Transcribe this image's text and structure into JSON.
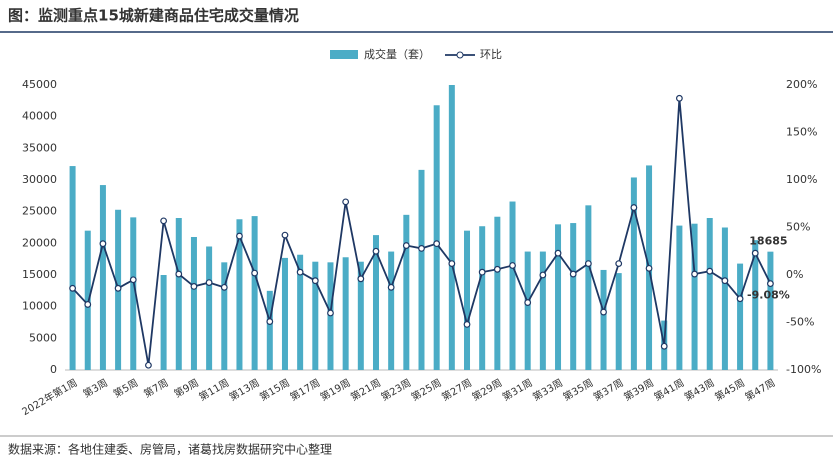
{
  "chart_data": {
    "type": "bar_line",
    "title": "图：监测重点15城新建商品住宅成交量情况",
    "source": "数据来源：各地住建委、房管局，诸葛找房数据研究中心整理",
    "categories": [
      "2022年第1周",
      null,
      "第3周",
      null,
      "第5周",
      null,
      "第7周",
      null,
      "第9周",
      null,
      "第11周",
      null,
      "第13周",
      null,
      "第15周",
      null,
      "第17周",
      null,
      "第19周",
      null,
      "第21周",
      null,
      "第23周",
      null,
      "第25周",
      null,
      "第27周",
      null,
      "第29周",
      null,
      "第31周",
      null,
      "第33周",
      null,
      "第35周",
      null,
      "第37周",
      null,
      "第39周",
      null,
      "第41周",
      null,
      "第43周",
      null,
      "第45周",
      null,
      "第47周"
    ],
    "series": [
      {
        "name": "成交量（套）",
        "color": "#4bacc6",
        "values": [
          32200,
          22000,
          29200,
          25300,
          24100,
          null,
          15000,
          24000,
          21000,
          19500,
          17000,
          23800,
          24300,
          12500,
          17700,
          18200,
          17100,
          17000,
          17800,
          17100,
          21300,
          18700,
          24500,
          31600,
          41800,
          45000,
          22000,
          22700,
          24200,
          26600,
          18700,
          18700,
          23000,
          23200,
          26000,
          15800,
          15300,
          30400,
          32300,
          7800,
          22800,
          23100,
          24000,
          22500,
          16800,
          20500,
          18685
        ],
        "value_labels": {
          "46": "18685"
        }
      },
      {
        "name": "环比",
        "color": "#1f3864",
        "axis": "y2",
        "values": [
          -14,
          -31,
          33,
          -14,
          -5,
          -95,
          57,
          1,
          -12,
          -8,
          -13,
          41,
          2,
          -49,
          42,
          3,
          -6,
          -40,
          77,
          -4,
          25,
          -13,
          31,
          28,
          33,
          12,
          -52,
          3,
          6,
          10,
          -29,
          0,
          23,
          1,
          12,
          -39,
          12,
          71,
          7,
          -75,
          186,
          1,
          4,
          -6,
          -25,
          23,
          -9.08
        ],
        "value_labels": {
          "46": "-9.08%"
        }
      }
    ],
    "ylim": [
      0,
      45000
    ],
    "yticks": [
      0,
      5000,
      10000,
      15000,
      20000,
      25000,
      30000,
      35000,
      40000,
      45000
    ],
    "y2lim": [
      -100,
      200
    ],
    "y2ticks": [
      {
        "value": -100,
        "label": "-100%"
      },
      {
        "value": -50,
        "label": "-50%"
      },
      {
        "value": 0,
        "label": "0%"
      },
      {
        "value": 50,
        "label": "50%"
      },
      {
        "value": 100,
        "label": "100%"
      },
      {
        "value": 150,
        "label": "150%"
      },
      {
        "value": 200,
        "label": "200%"
      }
    ]
  }
}
